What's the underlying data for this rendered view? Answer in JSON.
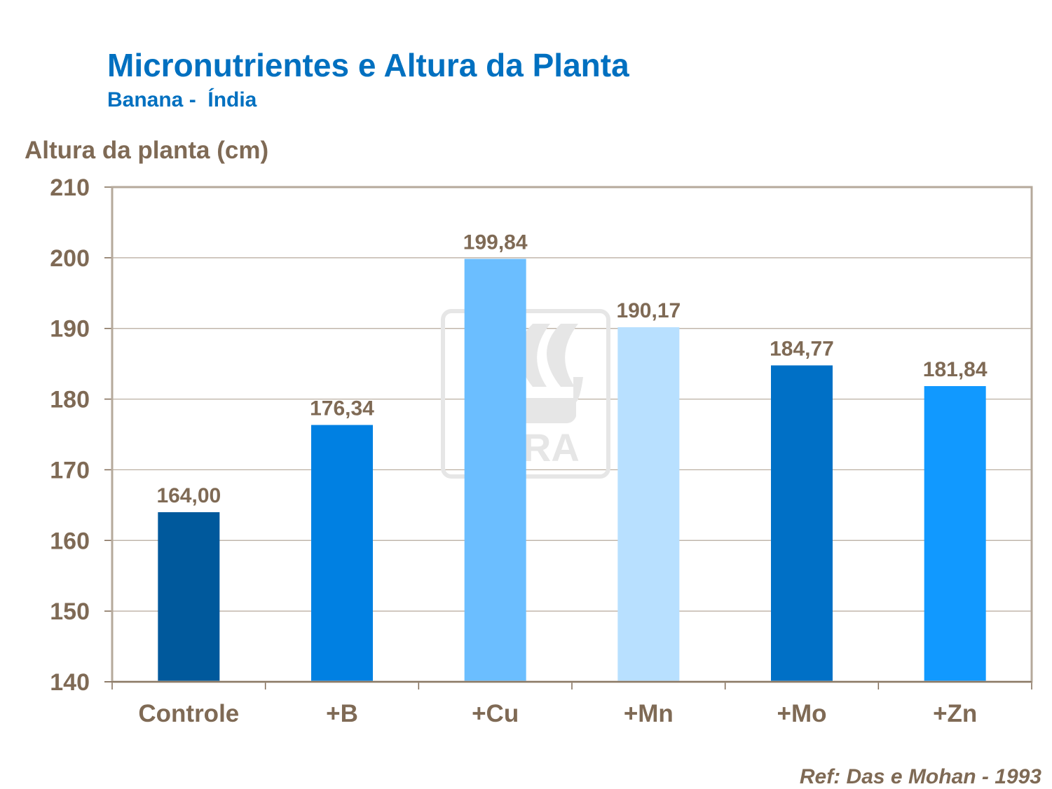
{
  "title": "Micronutrientes e Altura da Planta",
  "subtitle": "Banana -  Índia",
  "reference": "Ref: Das e Mohan - 1993",
  "watermark": "YARA",
  "chart_data": {
    "type": "bar",
    "title": "Micronutrientes e Altura da Planta",
    "subtitle": "Banana -  Índia",
    "xlabel": "",
    "ylabel": "Altura da planta (cm)",
    "ylim": [
      140,
      210
    ],
    "yticks": [
      140,
      150,
      160,
      170,
      180,
      190,
      200,
      210
    ],
    "grid": true,
    "categories": [
      "Controle",
      "+B",
      "+Cu",
      "+Mn",
      "+Mo",
      "+Zn"
    ],
    "values": [
      164.0,
      176.34,
      199.84,
      190.17,
      184.77,
      181.84
    ],
    "data_labels": [
      "164,00",
      "176,34",
      "199,84",
      "190,17",
      "184,77",
      "181,84"
    ],
    "colors": [
      "#00599C",
      "#0080E2",
      "#6BBEFF",
      "#B8E0FF",
      "#0070C6",
      "#1199FF"
    ]
  }
}
